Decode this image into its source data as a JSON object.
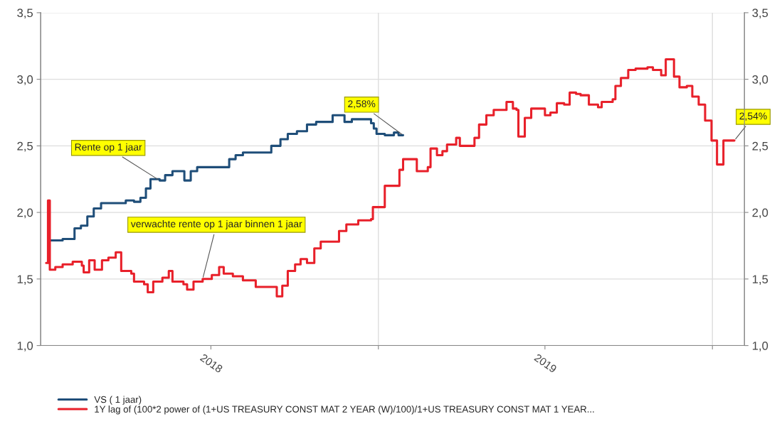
{
  "chart_data": {
    "type": "step",
    "x": [
      "2018-01-07",
      "2018-01-21",
      "2018-02-03",
      "2018-02-10",
      "2018-02-17",
      "2018-02-24",
      "2018-03-04",
      "2018-03-31",
      "2018-04-09",
      "2018-04-16",
      "2018-04-22",
      "2018-04-27",
      "2018-05-07",
      "2018-05-13",
      "2018-05-21",
      "2018-06-03",
      "2018-06-10",
      "2018-06-17",
      "2018-07-22",
      "2018-07-29",
      "2018-08-06",
      "2018-09-06",
      "2018-09-16",
      "2018-09-24",
      "2018-10-04",
      "2018-10-15",
      "2018-10-25",
      "2018-11-12",
      "2018-11-25",
      "2018-12-03",
      "2018-12-24",
      "2018-12-27",
      "2018-12-30",
      "2019-01-08",
      "2019-01-18",
      "2019-01-23",
      "2019-01-28"
    ],
    "series": [
      {
        "name": "VS ( 1 jaar)",
        "color": "#1f4e79",
        "values": [
          1.79,
          1.79,
          1.8,
          1.88,
          1.9,
          1.97,
          2.03,
          2.07,
          2.09,
          2.08,
          2.11,
          2.18,
          2.25,
          2.24,
          2.28,
          2.31,
          2.24,
          2.31,
          2.34,
          2.4,
          2.43,
          2.45,
          2.5,
          2.55,
          2.59,
          2.61,
          2.66,
          2.68,
          2.73,
          2.68,
          2.7,
          2.67,
          2.63,
          2.59,
          2.58,
          2.6,
          2.58
        ]
      },
      {
        "name": "1Y lag of (100*2 power of (1+US TREASURY CONST MAT 2 YEAR (W)/100)/1+US TREASURY CONST MAT 1 YEAR...",
        "color": "#e8202a",
        "x": [
          "2018-01-03",
          "2018-01-05",
          "2018-01-07",
          "2018-01-13",
          "2018-01-21",
          "2018-02-01",
          "2018-02-11",
          "2018-02-13",
          "2018-02-19",
          "2018-02-25",
          "2018-03-05",
          "2018-03-12",
          "2018-03-20",
          "2018-03-26",
          "2018-04-06",
          "2018-04-09",
          "2018-04-20",
          "2018-04-24",
          "2018-04-30",
          "2018-05-10",
          "2018-05-17",
          "2018-05-21",
          "2018-06-02",
          "2018-06-06",
          "2018-06-13",
          "2018-06-23",
          "2018-07-03",
          "2018-07-11",
          "2018-07-16",
          "2018-07-26",
          "2018-08-06",
          "2018-08-20",
          "2018-09-12",
          "2018-09-18",
          "2018-09-24",
          "2018-10-02",
          "2018-10-08",
          "2018-10-15",
          "2018-10-23",
          "2018-10-30",
          "2018-11-19",
          "2018-11-27",
          "2018-12-10",
          "2018-12-24",
          "2018-12-26",
          "2019-01-08",
          "2019-01-24",
          "2019-01-28",
          "2019-02-12",
          "2019-02-24",
          "2019-02-27",
          "2019-03-06",
          "2019-03-12",
          "2019-03-17",
          "2019-03-27",
          "2019-03-31",
          "2019-04-16",
          "2019-04-21",
          "2019-04-29",
          "2019-05-07",
          "2019-05-21",
          "2019-05-28",
          "2019-06-01",
          "2019-06-03",
          "2019-06-10",
          "2019-06-17",
          "2019-07-02",
          "2019-07-08",
          "2019-07-15",
          "2019-07-23",
          "2019-07-29",
          "2019-08-05",
          "2019-08-10",
          "2019-08-19",
          "2019-08-29",
          "2019-09-02",
          "2019-09-14",
          "2019-09-17",
          "2019-09-23",
          "2019-10-01",
          "2019-10-09",
          "2019-10-22",
          "2019-10-28",
          "2019-11-06",
          "2019-11-11",
          "2019-11-20",
          "2019-11-26",
          "2019-12-04",
          "2019-12-10",
          "2019-12-17",
          "2019-12-24",
          "2019-12-31",
          "2020-01-06",
          "2020-01-13",
          "2020-01-25"
        ],
        "values": [
          1.62,
          1.62,
          2.09,
          1.57,
          1.59,
          1.61,
          1.63,
          1.6,
          1.55,
          1.64,
          1.57,
          1.64,
          1.66,
          1.7,
          1.56,
          1.54,
          1.48,
          1.46,
          1.4,
          1.48,
          1.51,
          1.56,
          1.48,
          1.46,
          1.42,
          1.48,
          1.5,
          1.53,
          1.59,
          1.54,
          1.52,
          1.49,
          1.44,
          1.37,
          1.45,
          1.56,
          1.61,
          1.65,
          1.62,
          1.73,
          1.78,
          1.86,
          1.91,
          1.94,
          1.95,
          2.04,
          2.2,
          2.32,
          2.4,
          2.31,
          2.34,
          2.48,
          2.43,
          2.46,
          2.51,
          2.56,
          2.5,
          2.56,
          2.66,
          2.73,
          2.77,
          2.83,
          2.78,
          2.77,
          2.57,
          2.71,
          2.78,
          2.73,
          2.75,
          2.82,
          2.81,
          2.9,
          2.89,
          2.88,
          2.81,
          2.79,
          2.83,
          2.85,
          2.95,
          3.01,
          3.07,
          3.08,
          3.09,
          3.07,
          3.03,
          3.15,
          3.02,
          2.94,
          2.95,
          2.87,
          2.81,
          2.69,
          2.54,
          2.36,
          2.54
        ]
      }
    ],
    "xlim": [
      "2017-12-28",
      "2020-02-05"
    ],
    "xticks": [
      {
        "value": "2018-07-02",
        "label": "2018"
      },
      {
        "value": "2019-01-01",
        "label": null
      },
      {
        "value": "2019-07-02",
        "label": "2019"
      },
      {
        "value": "2020-01-01",
        "label": null
      }
    ],
    "ylim": [
      1.0,
      3.5
    ],
    "yticks": [
      {
        "value": 1.0,
        "label": "1,0"
      },
      {
        "value": 1.5,
        "label": "1,5"
      },
      {
        "value": 2.0,
        "label": "2,0"
      },
      {
        "value": 2.5,
        "label": "2,5"
      },
      {
        "value": 3.0,
        "label": "3,0"
      },
      {
        "value": 3.5,
        "label": "3,5"
      }
    ],
    "y2lim": [
      1.0,
      3.5
    ],
    "y2ticks": [
      {
        "value": 1.0,
        "label": "1,0"
      },
      {
        "value": 1.5,
        "label": "1,5"
      },
      {
        "value": 2.0,
        "label": "2,0"
      },
      {
        "value": 2.5,
        "label": "2,5"
      },
      {
        "value": 3.0,
        "label": "3,0"
      },
      {
        "value": 3.5,
        "label": "3,5"
      }
    ],
    "grid": true,
    "legend": "bottom",
    "annotations": [
      {
        "text": "Rente op 1 jaar",
        "x": "2018-05-07",
        "y": 2.24
      },
      {
        "text": "verwachte rente op 1 jaar binnen 1 jaar",
        "x": "2018-06-23",
        "y": 1.5
      },
      {
        "text": "2,58%",
        "x": "2019-01-28",
        "y": 2.58
      },
      {
        "text": "2,54%",
        "x": "2020-01-25",
        "y": 2.54
      }
    ]
  }
}
